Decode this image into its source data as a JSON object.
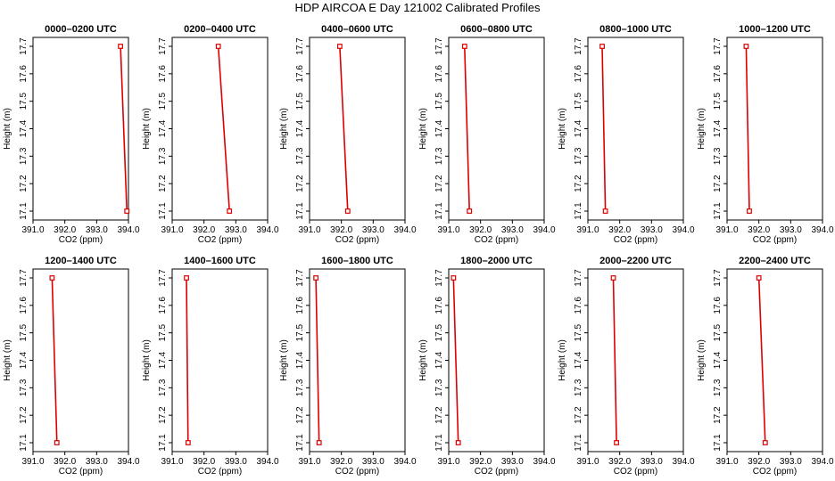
{
  "figure": {
    "title": "HDP AIRCOA E  Day 121002  Calibrated Profiles"
  },
  "colors": {
    "profile_line": "#dd0000",
    "axes": "#000000",
    "background": "#ffffff"
  },
  "chart_data": [
    {
      "type": "line",
      "title": "0000–0200 UTC",
      "xlabel": "CO2 (ppm)",
      "ylabel": "Height (m)",
      "xlim": [
        391.0,
        394.0
      ],
      "ylim": [
        17.1,
        17.7
      ],
      "xticks": [
        "391.0",
        "392.0",
        "393.0",
        "394.0"
      ],
      "yticks": [
        "17.1",
        "17.2",
        "17.3",
        "17.4",
        "17.5",
        "17.6",
        "17.7"
      ],
      "x": [
        393.75,
        393.95
      ],
      "y": [
        17.7,
        17.1
      ],
      "grid": false
    },
    {
      "type": "line",
      "title": "0200–0400 UTC",
      "xlabel": "CO2 (ppm)",
      "ylabel": "Height (m)",
      "xlim": [
        391.0,
        394.0
      ],
      "ylim": [
        17.1,
        17.7
      ],
      "xticks": [
        "391.0",
        "392.0",
        "393.0",
        "394.0"
      ],
      "yticks": [
        "17.1",
        "17.2",
        "17.3",
        "17.4",
        "17.5",
        "17.6",
        "17.7"
      ],
      "x": [
        392.45,
        392.8
      ],
      "y": [
        17.7,
        17.1
      ],
      "grid": false
    },
    {
      "type": "line",
      "title": "0400–0600 UTC",
      "xlabel": "CO2 (ppm)",
      "ylabel": "Height (m)",
      "xlim": [
        391.0,
        394.0
      ],
      "ylim": [
        17.1,
        17.7
      ],
      "xticks": [
        "391.0",
        "392.0",
        "393.0",
        "394.0"
      ],
      "yticks": [
        "17.1",
        "17.2",
        "17.3",
        "17.4",
        "17.5",
        "17.6",
        "17.7"
      ],
      "x": [
        391.95,
        392.2
      ],
      "y": [
        17.7,
        17.1
      ],
      "grid": false
    },
    {
      "type": "line",
      "title": "0600–0800 UTC",
      "xlabel": "CO2 (ppm)",
      "ylabel": "Height (m)",
      "xlim": [
        391.0,
        394.0
      ],
      "ylim": [
        17.1,
        17.7
      ],
      "xticks": [
        "391.0",
        "392.0",
        "393.0",
        "394.0"
      ],
      "yticks": [
        "17.1",
        "17.2",
        "17.3",
        "17.4",
        "17.5",
        "17.6",
        "17.7"
      ],
      "x": [
        391.5,
        391.65
      ],
      "y": [
        17.7,
        17.1
      ],
      "grid": false
    },
    {
      "type": "line",
      "title": "0800–1000 UTC",
      "xlabel": "CO2 (ppm)",
      "ylabel": "Height (m)",
      "xlim": [
        391.0,
        394.0
      ],
      "ylim": [
        17.1,
        17.7
      ],
      "xticks": [
        "391.0",
        "392.0",
        "393.0",
        "394.0"
      ],
      "yticks": [
        "17.1",
        "17.2",
        "17.3",
        "17.4",
        "17.5",
        "17.6",
        "17.7"
      ],
      "x": [
        391.45,
        391.55
      ],
      "y": [
        17.7,
        17.1
      ],
      "grid": false
    },
    {
      "type": "line",
      "title": "1000–1200 UTC",
      "xlabel": "CO2 (ppm)",
      "ylabel": "Height (m)",
      "xlim": [
        391.0,
        394.0
      ],
      "ylim": [
        17.1,
        17.7
      ],
      "xticks": [
        "391.0",
        "392.0",
        "393.0",
        "394.0"
      ],
      "yticks": [
        "17.1",
        "17.2",
        "17.3",
        "17.4",
        "17.5",
        "17.6",
        "17.7"
      ],
      "x": [
        391.6,
        391.7
      ],
      "y": [
        17.7,
        17.1
      ],
      "grid": false
    },
    {
      "type": "line",
      "title": "1200–1400 UTC",
      "xlabel": "CO2 (ppm)",
      "ylabel": "Height (m)",
      "xlim": [
        391.0,
        394.0
      ],
      "ylim": [
        17.1,
        17.7
      ],
      "xticks": [
        "391.0",
        "392.0",
        "393.0",
        "394.0"
      ],
      "yticks": [
        "17.1",
        "17.2",
        "17.3",
        "17.4",
        "17.5",
        "17.6",
        "17.7"
      ],
      "x": [
        391.6,
        391.75
      ],
      "y": [
        17.7,
        17.1
      ],
      "grid": false
    },
    {
      "type": "line",
      "title": "1400–1600 UTC",
      "xlabel": "CO2 (ppm)",
      "ylabel": "Height (m)",
      "xlim": [
        391.0,
        394.0
      ],
      "ylim": [
        17.1,
        17.7
      ],
      "xticks": [
        "391.0",
        "392.0",
        "393.0",
        "394.0"
      ],
      "yticks": [
        "17.1",
        "17.2",
        "17.3",
        "17.4",
        "17.5",
        "17.6",
        "17.7"
      ],
      "x": [
        391.45,
        391.5
      ],
      "y": [
        17.7,
        17.1
      ],
      "grid": false
    },
    {
      "type": "line",
      "title": "1600–1800 UTC",
      "xlabel": "CO2 (ppm)",
      "ylabel": "Height (m)",
      "xlim": [
        391.0,
        394.0
      ],
      "ylim": [
        17.1,
        17.7
      ],
      "xticks": [
        "391.0",
        "392.0",
        "393.0",
        "394.0"
      ],
      "yticks": [
        "17.1",
        "17.2",
        "17.3",
        "17.4",
        "17.5",
        "17.6",
        "17.7"
      ],
      "x": [
        391.2,
        391.3
      ],
      "y": [
        17.7,
        17.1
      ],
      "grid": false
    },
    {
      "type": "line",
      "title": "1800–2000 UTC",
      "xlabel": "CO2 (ppm)",
      "ylabel": "Height (m)",
      "xlim": [
        391.0,
        394.0
      ],
      "ylim": [
        17.1,
        17.7
      ],
      "xticks": [
        "391.0",
        "392.0",
        "393.0",
        "394.0"
      ],
      "yticks": [
        "17.1",
        "17.2",
        "17.3",
        "17.4",
        "17.5",
        "17.6",
        "17.7"
      ],
      "x": [
        391.15,
        391.3
      ],
      "y": [
        17.7,
        17.1
      ],
      "grid": false
    },
    {
      "type": "line",
      "title": "2000–2200 UTC",
      "xlabel": "CO2 (ppm)",
      "ylabel": "Height (m)",
      "xlim": [
        391.0,
        394.0
      ],
      "ylim": [
        17.1,
        17.7
      ],
      "xticks": [
        "391.0",
        "392.0",
        "393.0",
        "394.0"
      ],
      "yticks": [
        "17.1",
        "17.2",
        "17.3",
        "17.4",
        "17.5",
        "17.6",
        "17.7"
      ],
      "x": [
        391.8,
        391.9
      ],
      "y": [
        17.7,
        17.1
      ],
      "grid": false
    },
    {
      "type": "line",
      "title": "2200–2400 UTC",
      "xlabel": "CO2 (ppm)",
      "ylabel": "Height (m)",
      "xlim": [
        391.0,
        394.0
      ],
      "ylim": [
        17.1,
        17.7
      ],
      "xticks": [
        "391.0",
        "392.0",
        "393.0",
        "394.0"
      ],
      "yticks": [
        "17.1",
        "17.2",
        "17.3",
        "17.4",
        "17.5",
        "17.6",
        "17.7"
      ],
      "x": [
        392.0,
        392.2
      ],
      "y": [
        17.7,
        17.1
      ],
      "grid": false
    }
  ]
}
